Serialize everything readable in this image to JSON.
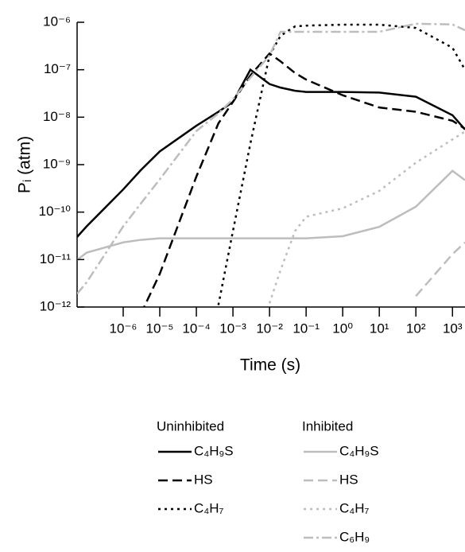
{
  "chart_data": {
    "type": "line",
    "xlabel": "Time (s)",
    "ylabel": "Pᵢ (atm)",
    "xscale": "log",
    "yscale": "log",
    "xlim": [
      5.5e-08,
      2200
    ],
    "ylim": [
      1e-12,
      1e-06
    ],
    "xticks": [
      {
        "value": 1e-06,
        "label": "10⁻⁶"
      },
      {
        "value": 1e-05,
        "label": "10⁻⁵"
      },
      {
        "value": 0.0001,
        "label": "10⁻⁴"
      },
      {
        "value": 0.001,
        "label": "10⁻³"
      },
      {
        "value": 0.01,
        "label": "10⁻²"
      },
      {
        "value": 0.1,
        "label": "10⁻¹"
      },
      {
        "value": 1,
        "label": "10⁰"
      },
      {
        "value": 10,
        "label": "10¹"
      },
      {
        "value": 100,
        "label": "10²"
      },
      {
        "value": 1000,
        "label": "10³"
      }
    ],
    "yticks": [
      {
        "value": 1e-12,
        "label": "10⁻¹²"
      },
      {
        "value": 1e-11,
        "label": "10⁻¹¹"
      },
      {
        "value": 1e-10,
        "label": "10⁻¹⁰"
      },
      {
        "value": 1e-09,
        "label": "10⁻⁹"
      },
      {
        "value": 1e-08,
        "label": "10⁻⁸"
      },
      {
        "value": 1e-07,
        "label": "10⁻⁷"
      },
      {
        "value": 1e-06,
        "label": "10⁻⁶"
      }
    ],
    "x": [
      5.5e-08,
      1e-07,
      1e-06,
      3e-06,
      1e-05,
      0.0001,
      0.0004,
      0.001,
      0.003,
      0.01,
      0.02,
      0.05,
      0.1,
      1,
      10,
      100,
      1000,
      2200
    ],
    "series": [
      {
        "name": "C₄H₉S",
        "group": "Uninhibited",
        "color": "#000000",
        "dash": "solid",
        "values": [
          3e-11,
          5e-11,
          3e-10,
          7.6e-10,
          1.9e-09,
          6.6e-09,
          1.3e-08,
          2.1e-08,
          1e-07,
          5e-08,
          4.2e-08,
          3.6e-08,
          3.4e-08,
          3.4e-08,
          3.3e-08,
          2.7e-08,
          1.1e-08,
          5.5e-09
        ]
      },
      {
        "name": "HS",
        "group": "Uninhibited",
        "color": "#000000",
        "dash": "dashed",
        "values": [
          null,
          null,
          null,
          7e-13,
          5e-12,
          5.6e-10,
          7.4e-09,
          2.1e-08,
          7.6e-08,
          2.2e-07,
          1.5e-07,
          8.5e-08,
          6.2e-08,
          2.9e-08,
          1.6e-08,
          1.3e-08,
          8.4e-09,
          5.7e-09
        ]
      },
      {
        "name": "C₄H₇",
        "group": "Uninhibited",
        "color": "#000000",
        "dash": "dotted",
        "values": [
          null,
          null,
          null,
          null,
          null,
          null,
          1.1e-12,
          4e-11,
          2.8e-09,
          2e-07,
          5.2e-07,
          8.2e-07,
          8.5e-07,
          8.9e-07,
          8.9e-07,
          7.6e-07,
          2.9e-07,
          1e-07
        ]
      },
      {
        "name": "C₄H₉S",
        "group": "Inhibited",
        "color": "#bdbdbd",
        "dash": "solid",
        "values": [
          9.8e-12,
          1.4e-11,
          2.3e-11,
          2.6e-11,
          2.8e-11,
          2.8e-11,
          2.8e-11,
          2.8e-11,
          2.8e-11,
          2.8e-11,
          2.8e-11,
          2.8e-11,
          2.8e-11,
          3.1e-11,
          4.9e-11,
          1.3e-10,
          7.4e-10,
          4.7e-10
        ]
      },
      {
        "name": "HS",
        "group": "Inhibited",
        "color": "#bdbdbd",
        "dash": "dashed",
        "values": [
          null,
          null,
          null,
          null,
          null,
          null,
          null,
          null,
          null,
          null,
          null,
          null,
          null,
          null,
          null,
          1.7e-12,
          1.3e-11,
          2.3e-11
        ]
      },
      {
        "name": "C₄H₇",
        "group": "Inhibited",
        "color": "#bdbdbd",
        "dash": "dotted",
        "values": [
          null,
          null,
          null,
          null,
          null,
          null,
          null,
          null,
          null,
          1.2e-12,
          6e-12,
          4e-11,
          8e-11,
          1.2e-10,
          2.8e-10,
          1.1e-09,
          3.4e-09,
          5e-09
        ]
      },
      {
        "name": "C₆H₉",
        "group": "Inhibited",
        "color": "#bdbdbd",
        "dash": "dashdot",
        "values": [
          1.9e-12,
          3.3e-12,
          5e-11,
          1.5e-10,
          4.9e-10,
          5.1e-09,
          1.2e-08,
          2.4e-08,
          6.8e-08,
          2e-07,
          6.3e-07,
          6.3e-07,
          6.3e-07,
          6.3e-07,
          6.3e-07,
          9.3e-07,
          9e-07,
          6.8e-07
        ]
      }
    ]
  }
}
